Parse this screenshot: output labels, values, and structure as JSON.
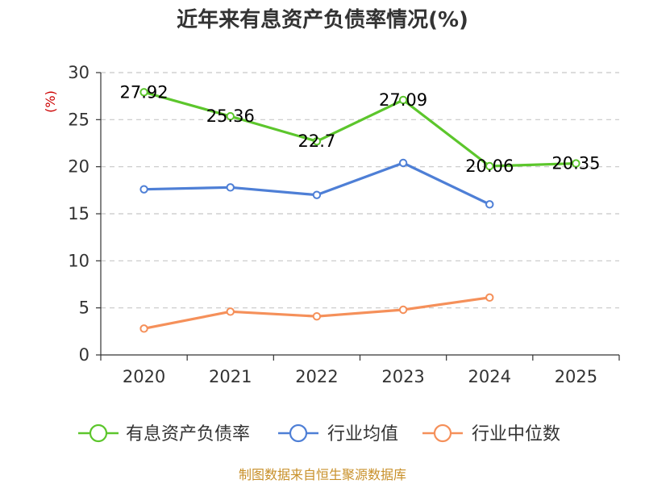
{
  "chart_data": {
    "type": "line",
    "title": "近年来有息资产负债率情况(%)",
    "ylabel": "(%)",
    "xlabel": "",
    "ylim": [
      0,
      30
    ],
    "yticks": [
      "0",
      "5",
      "10",
      "15",
      "20",
      "25",
      "30"
    ],
    "categories": [
      "2020",
      "2021",
      "2022",
      "2023",
      "2024",
      "2025"
    ],
    "grid": true,
    "legend_position": "bottom",
    "series": [
      {
        "name": "有息资产负债率",
        "color": "#5cc62c",
        "values": [
          27.92,
          25.36,
          22.7,
          27.09,
          20.06,
          20.35
        ],
        "labels": [
          "27.92",
          "25.36",
          "22.7",
          "27.09",
          "20.06",
          "20.35"
        ]
      },
      {
        "name": "行业均值",
        "color": "#4e7fd6",
        "values": [
          17.6,
          17.8,
          17.0,
          20.4,
          16.0,
          null
        ]
      },
      {
        "name": "行业中位数",
        "color": "#f5905a",
        "values": [
          2.8,
          4.6,
          4.1,
          4.8,
          6.1,
          null
        ]
      }
    ]
  },
  "source": "制图数据来自恒生聚源数据库"
}
